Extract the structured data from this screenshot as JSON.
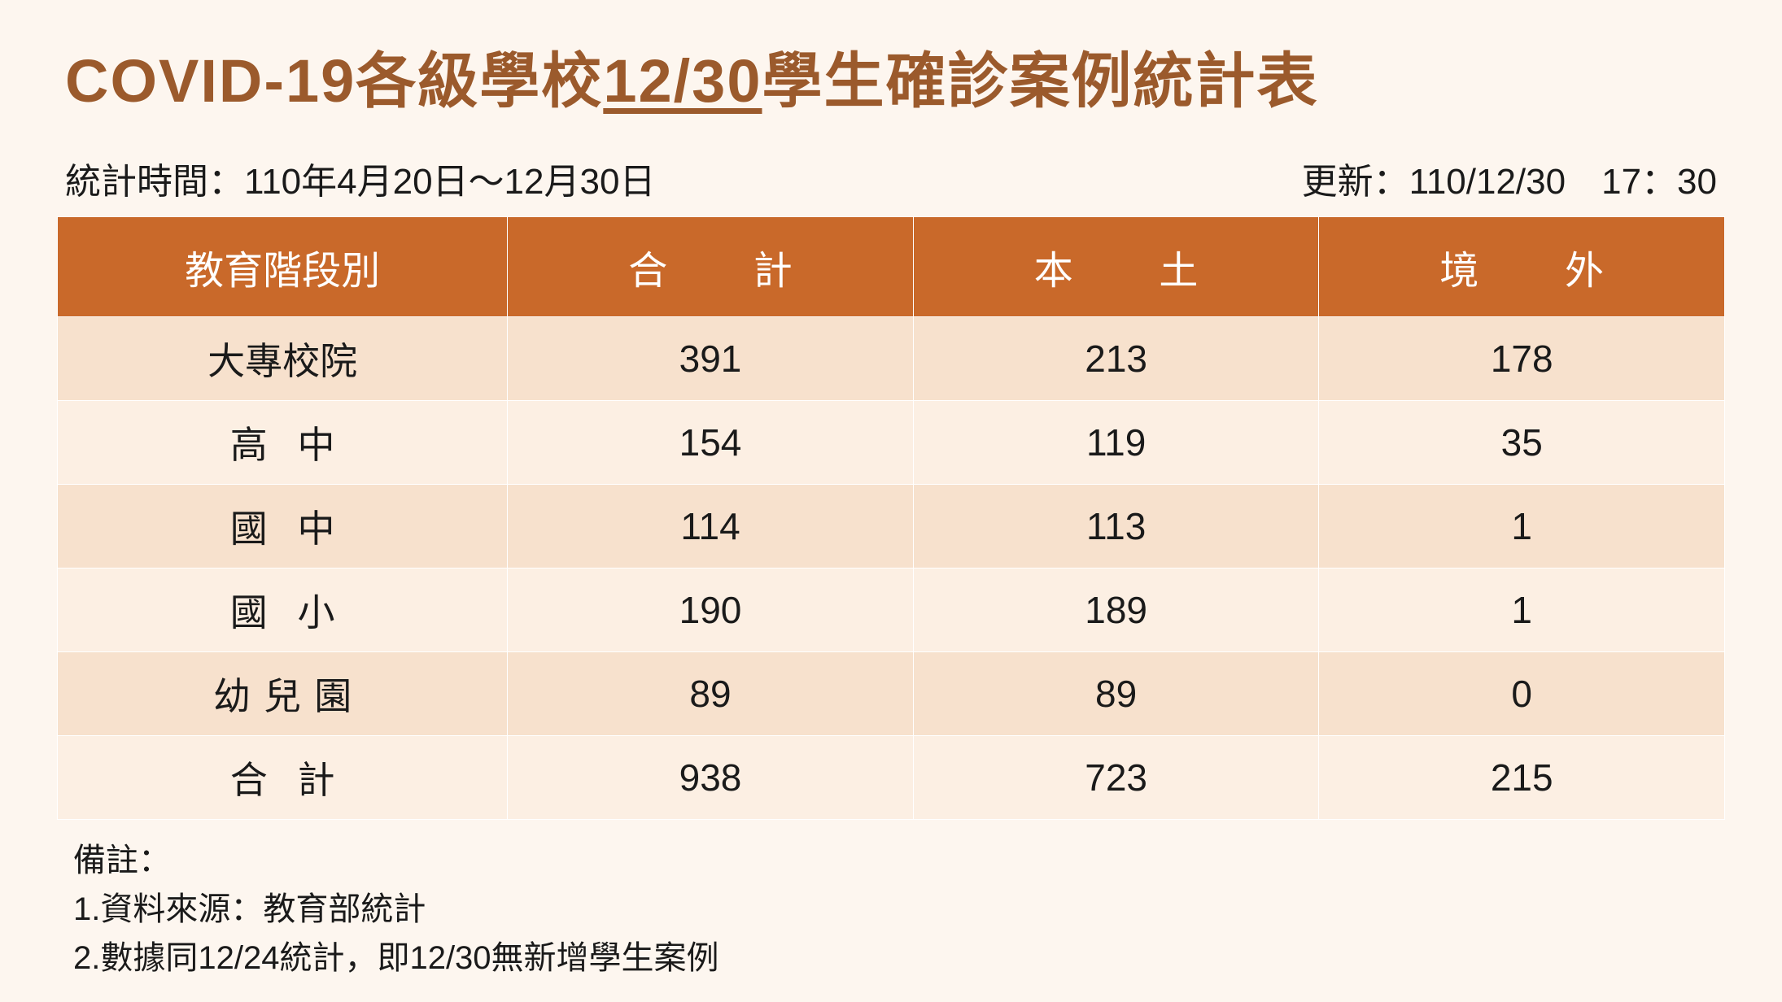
{
  "title": {
    "prefix": "COVID-19各級學校",
    "underlined": "12/30",
    "suffix": "學生確診案例統計表"
  },
  "meta": {
    "period": "統計時間：110年4月20日～12月30日",
    "updated": "更新：110/12/30　17：30"
  },
  "table": {
    "columns": [
      "教育階段別",
      "合　計",
      "本　土",
      "境　外"
    ],
    "rows": [
      {
        "label": "大專校院",
        "spacing": "none",
        "total": "391",
        "local": "213",
        "foreign": "178"
      },
      {
        "label": "高中",
        "spacing": "s2",
        "total": "154",
        "local": "119",
        "foreign": "35"
      },
      {
        "label": "國中",
        "spacing": "s2",
        "total": "114",
        "local": "113",
        "foreign": "1"
      },
      {
        "label": "國小",
        "spacing": "s2",
        "total": "190",
        "local": "189",
        "foreign": "1"
      },
      {
        "label": "幼兒園",
        "spacing": "s3",
        "total": "89",
        "local": "89",
        "foreign": "0"
      },
      {
        "label": "合計",
        "spacing": "s2",
        "total": "938",
        "local": "723",
        "foreign": "215"
      }
    ]
  },
  "notes": {
    "header": "備註：",
    "lines": [
      "1.資料來源：教育部統計",
      "2.數據同12/24統計，即12/30無新增學生案例"
    ]
  },
  "colors": {
    "header_bg": "#c9692a",
    "row_odd": "#f7e1cd",
    "row_even": "#fcefe3",
    "title_color": "#9b5a2c",
    "page_bg": "#fdf6ef"
  }
}
